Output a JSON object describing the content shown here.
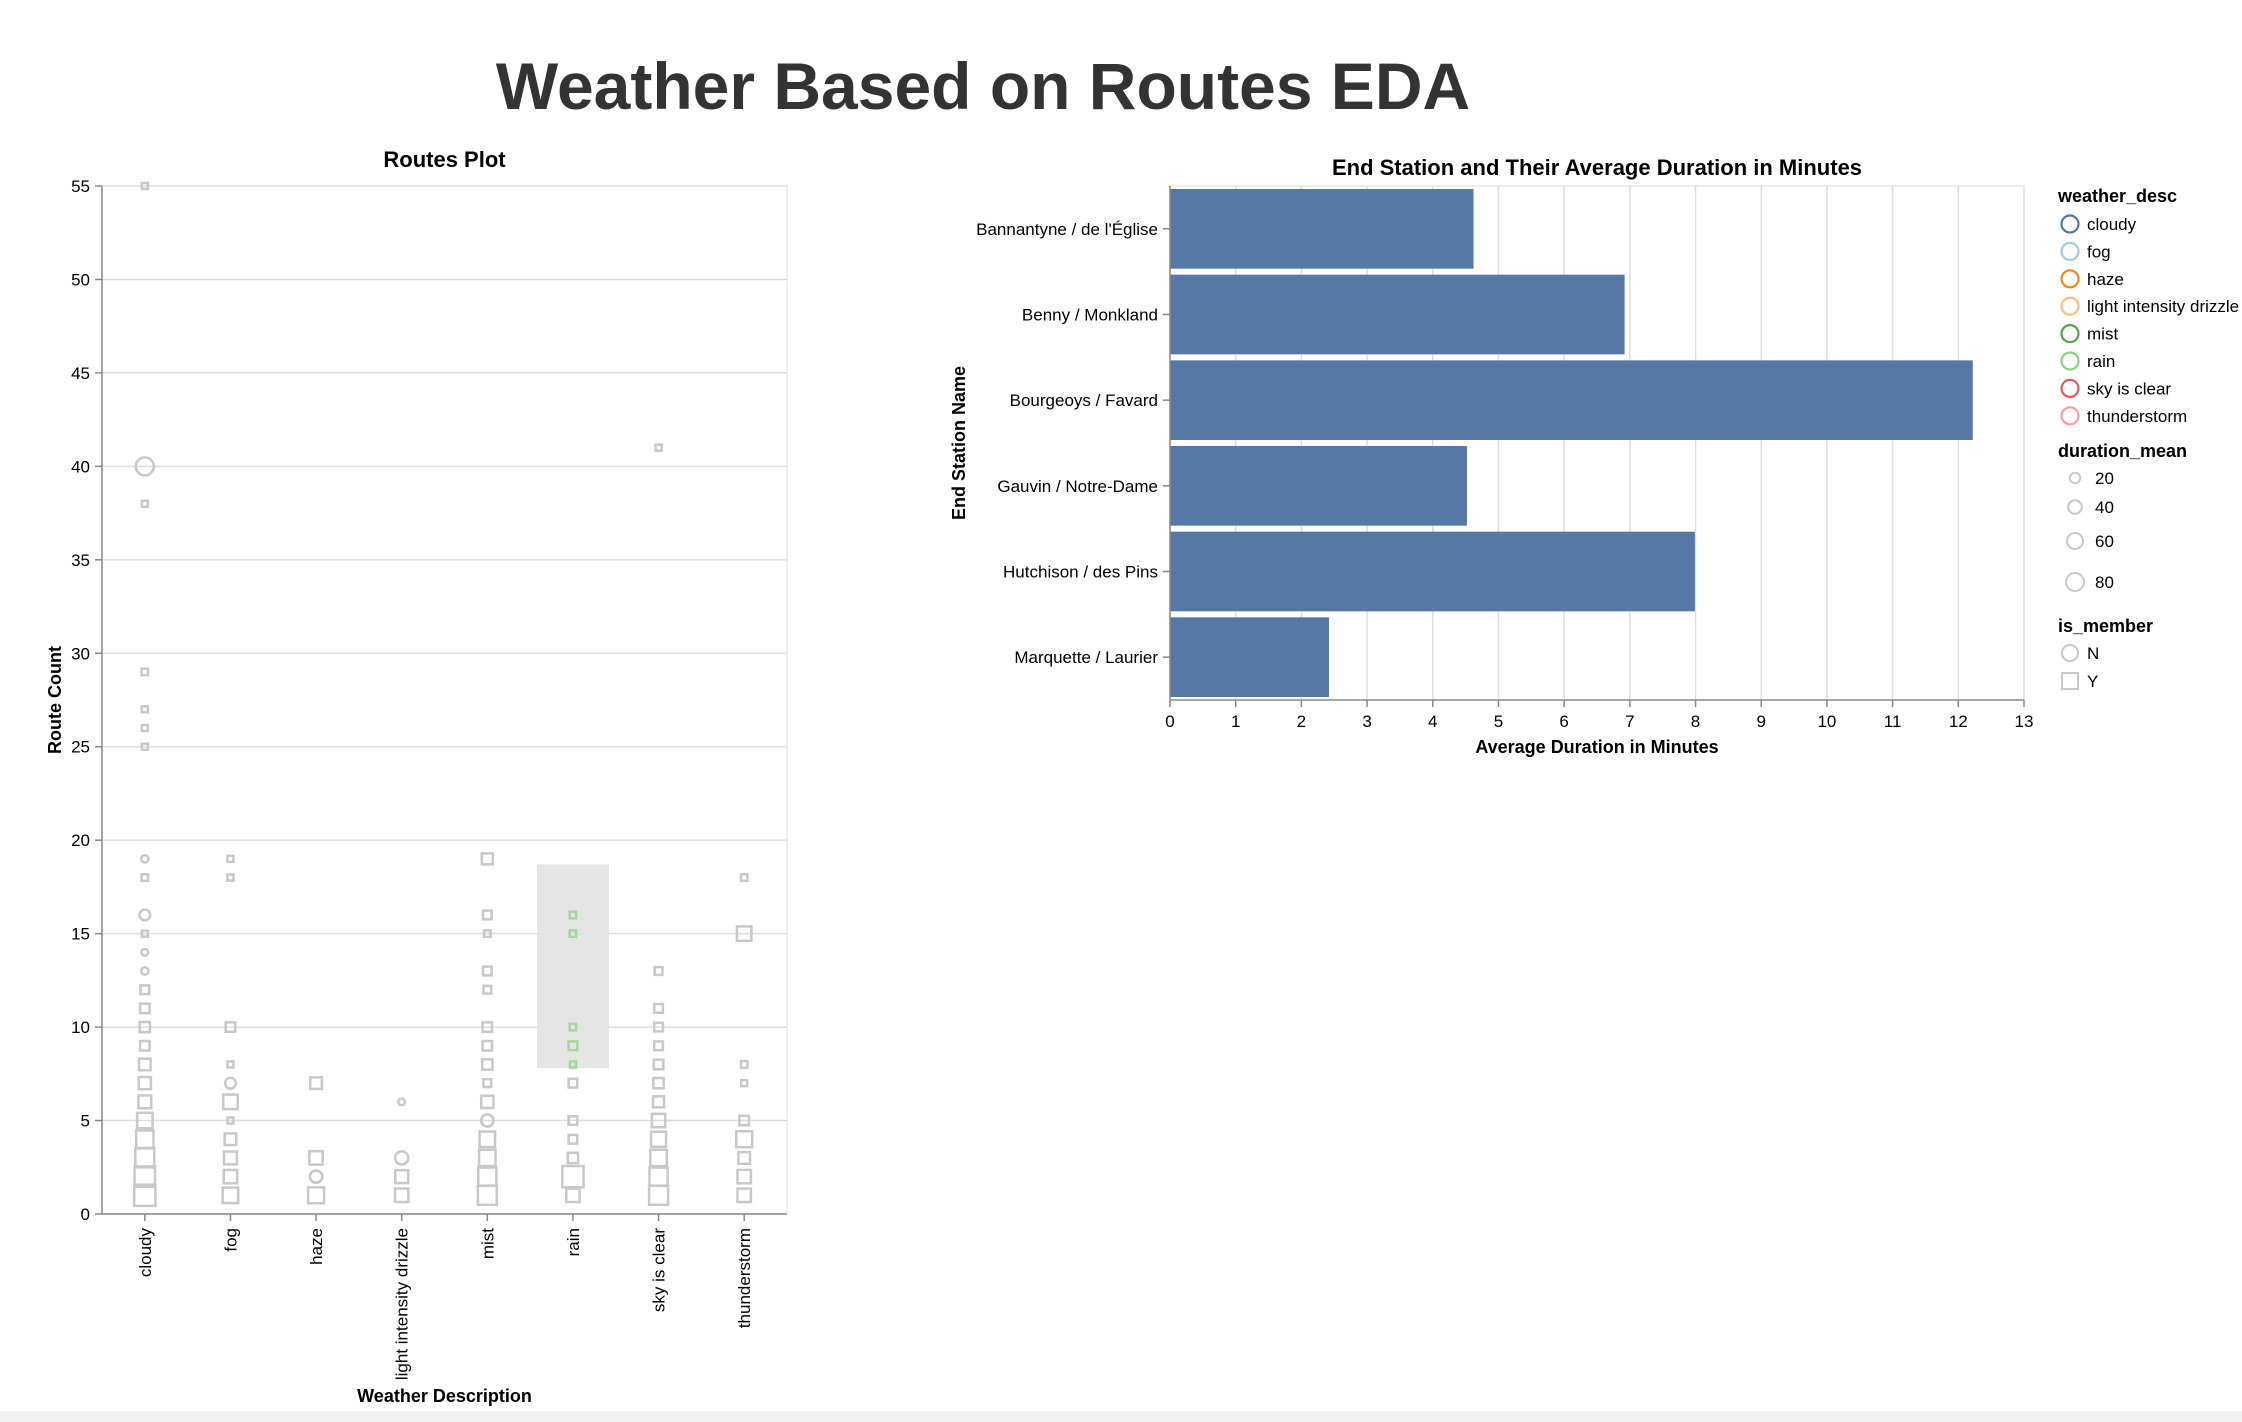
{
  "page_title": "Weather Based on Routes EDA",
  "chart_data": [
    {
      "type": "scatter",
      "title": "Routes Plot",
      "xlabel": "Weather Description",
      "ylabel": "Route Count",
      "categories": [
        "cloudy",
        "fog",
        "haze",
        "light intensity drizzle",
        "mist",
        "rain",
        "sky is clear",
        "thunderstorm"
      ],
      "ylim": [
        0,
        55
      ],
      "yticks": [
        0,
        5,
        10,
        15,
        20,
        25,
        30,
        35,
        40,
        45,
        50,
        55
      ],
      "grid": true,
      "highlight": {
        "category": "rain",
        "y_range": [
          7.8,
          18.7
        ],
        "color": "#e2e2e2"
      },
      "default_color": "#c8c8c8",
      "selected_color": "#a1d99b",
      "points": [
        {
          "c": "cloudy",
          "y": 55,
          "shape": "square",
          "size": 12
        },
        {
          "c": "cloudy",
          "y": 40,
          "shape": "circle",
          "size": 85
        },
        {
          "c": "cloudy",
          "y": 38,
          "shape": "square",
          "size": 12
        },
        {
          "c": "cloudy",
          "y": 29,
          "shape": "square",
          "size": 14
        },
        {
          "c": "cloudy",
          "y": 27,
          "shape": "square",
          "size": 12
        },
        {
          "c": "cloudy",
          "y": 26,
          "shape": "square",
          "size": 12
        },
        {
          "c": "cloudy",
          "y": 25,
          "shape": "square",
          "size": 12
        },
        {
          "c": "cloudy",
          "y": 19,
          "shape": "circle",
          "size": 14
        },
        {
          "c": "cloudy",
          "y": 18,
          "shape": "square",
          "size": 14
        },
        {
          "c": "cloudy",
          "y": 16,
          "shape": "circle",
          "size": 30
        },
        {
          "c": "cloudy",
          "y": 15,
          "shape": "square",
          "size": 12
        },
        {
          "c": "cloudy",
          "y": 14,
          "shape": "circle",
          "size": 12
        },
        {
          "c": "cloudy",
          "y": 13,
          "shape": "circle",
          "size": 14
        },
        {
          "c": "cloudy",
          "y": 12,
          "shape": "square",
          "size": 25
        },
        {
          "c": "cloudy",
          "y": 11,
          "shape": "square",
          "size": 30
        },
        {
          "c": "cloudy",
          "y": 10,
          "shape": "square",
          "size": 35
        },
        {
          "c": "cloudy",
          "y": 9,
          "shape": "square",
          "size": 30
        },
        {
          "c": "cloudy",
          "y": 8,
          "shape": "square",
          "size": 45
        },
        {
          "c": "cloudy",
          "y": 7,
          "shape": "square",
          "size": 50
        },
        {
          "c": "cloudy",
          "y": 6,
          "shape": "square",
          "size": 55
        },
        {
          "c": "cloudy",
          "y": 5,
          "shape": "square",
          "size": 80
        },
        {
          "c": "cloudy",
          "y": 4,
          "shape": "square",
          "size": 100
        },
        {
          "c": "cloudy",
          "y": 3,
          "shape": "square",
          "size": 120
        },
        {
          "c": "cloudy",
          "y": 2,
          "shape": "square",
          "size": 140
        },
        {
          "c": "cloudy",
          "y": 1,
          "shape": "square",
          "size": 150
        },
        {
          "c": "fog",
          "y": 19,
          "shape": "square",
          "size": 12
        },
        {
          "c": "fog",
          "y": 18,
          "shape": "square",
          "size": 12
        },
        {
          "c": "fog",
          "y": 10,
          "shape": "square",
          "size": 30
        },
        {
          "c": "fog",
          "y": 8,
          "shape": "square",
          "size": 12
        },
        {
          "c": "fog",
          "y": 7,
          "shape": "circle",
          "size": 30
        },
        {
          "c": "fog",
          "y": 6,
          "shape": "square",
          "size": 70
        },
        {
          "c": "fog",
          "y": 5,
          "shape": "square",
          "size": 12
        },
        {
          "c": "fog",
          "y": 4,
          "shape": "square",
          "size": 45
        },
        {
          "c": "fog",
          "y": 3,
          "shape": "square",
          "size": 55
        },
        {
          "c": "fog",
          "y": 2,
          "shape": "square",
          "size": 60
        },
        {
          "c": "fog",
          "y": 1,
          "shape": "square",
          "size": 80
        },
        {
          "c": "haze",
          "y": 7,
          "shape": "square",
          "size": 45
        },
        {
          "c": "haze",
          "y": 3,
          "shape": "square",
          "size": 60
        },
        {
          "c": "haze",
          "y": 2,
          "shape": "circle",
          "size": 40
        },
        {
          "c": "haze",
          "y": 1,
          "shape": "square",
          "size": 85
        },
        {
          "c": "light intensity drizzle",
          "y": 6,
          "shape": "circle",
          "size": 12
        },
        {
          "c": "light intensity drizzle",
          "y": 3,
          "shape": "circle",
          "size": 45
        },
        {
          "c": "light intensity drizzle",
          "y": 2,
          "shape": "square",
          "size": 55
        },
        {
          "c": "light intensity drizzle",
          "y": 1,
          "shape": "square",
          "size": 60
        },
        {
          "c": "mist",
          "y": 19,
          "shape": "square",
          "size": 40
        },
        {
          "c": "mist",
          "y": 16,
          "shape": "square",
          "size": 25
        },
        {
          "c": "mist",
          "y": 15,
          "shape": "square",
          "size": 14
        },
        {
          "c": "mist",
          "y": 13,
          "shape": "square",
          "size": 25
        },
        {
          "c": "mist",
          "y": 12,
          "shape": "square",
          "size": 20
        },
        {
          "c": "mist",
          "y": 10,
          "shape": "square",
          "size": 30
        },
        {
          "c": "mist",
          "y": 9,
          "shape": "square",
          "size": 30
        },
        {
          "c": "mist",
          "y": 8,
          "shape": "square",
          "size": 35
        },
        {
          "c": "mist",
          "y": 7,
          "shape": "square",
          "size": 20
        },
        {
          "c": "mist",
          "y": 6,
          "shape": "square",
          "size": 50
        },
        {
          "c": "mist",
          "y": 5,
          "shape": "circle",
          "size": 40
        },
        {
          "c": "mist",
          "y": 4,
          "shape": "square",
          "size": 80
        },
        {
          "c": "mist",
          "y": 3,
          "shape": "square",
          "size": 90
        },
        {
          "c": "mist",
          "y": 2,
          "shape": "square",
          "size": 110
        },
        {
          "c": "mist",
          "y": 1,
          "shape": "square",
          "size": 120
        },
        {
          "c": "rain",
          "y": 16,
          "shape": "square",
          "size": 14,
          "selected": true
        },
        {
          "c": "rain",
          "y": 15,
          "shape": "square",
          "size": 14,
          "selected": true
        },
        {
          "c": "rain",
          "y": 10,
          "shape": "square",
          "size": 14,
          "selected": true
        },
        {
          "c": "rain",
          "y": 9,
          "shape": "square",
          "size": 25,
          "selected": true
        },
        {
          "c": "rain",
          "y": 8,
          "shape": "square",
          "size": 12,
          "selected": true
        },
        {
          "c": "rain",
          "y": 7,
          "shape": "square",
          "size": 25
        },
        {
          "c": "rain",
          "y": 5,
          "shape": "square",
          "size": 25
        },
        {
          "c": "rain",
          "y": 4,
          "shape": "square",
          "size": 25
        },
        {
          "c": "rain",
          "y": 3,
          "shape": "square",
          "size": 35
        },
        {
          "c": "rain",
          "y": 2,
          "shape": "square",
          "size": 150
        },
        {
          "c": "rain",
          "y": 1,
          "shape": "square",
          "size": 60
        },
        {
          "c": "sky is clear",
          "y": 41,
          "shape": "square",
          "size": 12
        },
        {
          "c": "sky is clear",
          "y": 13,
          "shape": "square",
          "size": 20
        },
        {
          "c": "sky is clear",
          "y": 11,
          "shape": "square",
          "size": 25
        },
        {
          "c": "sky is clear",
          "y": 10,
          "shape": "square",
          "size": 25
        },
        {
          "c": "sky is clear",
          "y": 9,
          "shape": "square",
          "size": 25
        },
        {
          "c": "sky is clear",
          "y": 8,
          "shape": "square",
          "size": 30
        },
        {
          "c": "sky is clear",
          "y": 7,
          "shape": "square",
          "size": 35
        },
        {
          "c": "sky is clear",
          "y": 6,
          "shape": "square",
          "size": 40
        },
        {
          "c": "sky is clear",
          "y": 5,
          "shape": "square",
          "size": 60
        },
        {
          "c": "sky is clear",
          "y": 4,
          "shape": "square",
          "size": 75
        },
        {
          "c": "sky is clear",
          "y": 3,
          "shape": "square",
          "size": 90
        },
        {
          "c": "sky is clear",
          "y": 2,
          "shape": "square",
          "size": 110
        },
        {
          "c": "sky is clear",
          "y": 1,
          "shape": "square",
          "size": 120
        },
        {
          "c": "thunderstorm",
          "y": 18,
          "shape": "square",
          "size": 14
        },
        {
          "c": "thunderstorm",
          "y": 15,
          "shape": "square",
          "size": 70
        },
        {
          "c": "thunderstorm",
          "y": 8,
          "shape": "square",
          "size": 14
        },
        {
          "c": "thunderstorm",
          "y": 7,
          "shape": "square",
          "size": 12
        },
        {
          "c": "thunderstorm",
          "y": 5,
          "shape": "square",
          "size": 30
        },
        {
          "c": "thunderstorm",
          "y": 4,
          "shape": "square",
          "size": 85
        },
        {
          "c": "thunderstorm",
          "y": 3,
          "shape": "square",
          "size": 45
        },
        {
          "c": "thunderstorm",
          "y": 2,
          "shape": "square",
          "size": 60
        },
        {
          "c": "thunderstorm",
          "y": 1,
          "shape": "square",
          "size": 60
        }
      ]
    },
    {
      "type": "bar",
      "orientation": "horizontal",
      "title": "End Station and Their Average Duration in Minutes",
      "xlabel": "Average Duration in Minutes",
      "ylabel": "End Station Name",
      "categories": [
        "Bannantyne / de l'Église",
        "Benny / Monkland",
        "Bourgeoys / Favard",
        "Gauvin / Notre-Dame",
        "Hutchison / des Pins",
        "Marquette / Laurier"
      ],
      "values": [
        4.62,
        6.92,
        12.22,
        4.52,
        7.99,
        2.42
      ],
      "xlim": [
        0,
        13
      ],
      "xticks": [
        0,
        1,
        2,
        3,
        4,
        5,
        6,
        7,
        8,
        9,
        10,
        11,
        12,
        13
      ],
      "grid": true,
      "bar_color": "#5778a4"
    }
  ],
  "legend": {
    "placement": "right",
    "weather_desc": {
      "title": "weather_desc",
      "items": [
        {
          "label": "cloudy",
          "color": "#4c78a8"
        },
        {
          "label": "fog",
          "color": "#9ecae9"
        },
        {
          "label": "haze",
          "color": "#f58518"
        },
        {
          "label": "light intensity drizzle",
          "color": "#ffbf79"
        },
        {
          "label": "mist",
          "color": "#54a24b"
        },
        {
          "label": "rain",
          "color": "#88d27a"
        },
        {
          "label": "sky is clear",
          "color": "#e45756"
        },
        {
          "label": "thunderstorm",
          "color": "#ff9d98"
        }
      ]
    },
    "duration_mean": {
      "title": "duration_mean",
      "items": [
        {
          "label": "20",
          "value": 20
        },
        {
          "label": "40",
          "value": 40
        },
        {
          "label": "60",
          "value": 60
        },
        {
          "label": "80",
          "value": 80
        }
      ]
    },
    "is_member": {
      "title": "is_member",
      "items": [
        {
          "label": "N",
          "shape": "circle"
        },
        {
          "label": "Y",
          "shape": "square"
        }
      ]
    }
  }
}
